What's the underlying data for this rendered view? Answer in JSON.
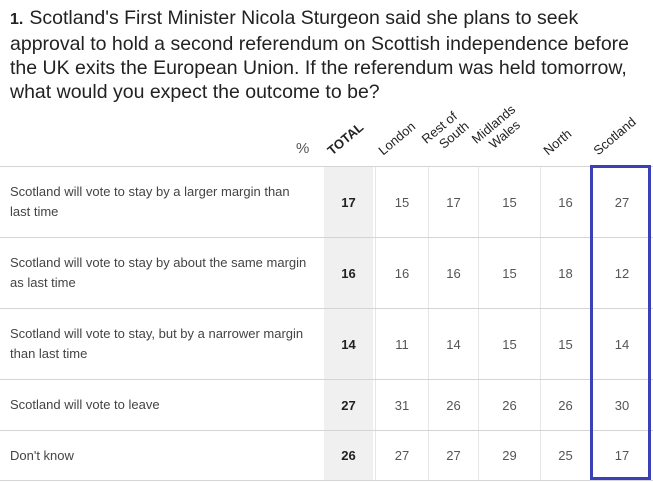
{
  "question": {
    "number": "1.",
    "text": "Scotland's First Minister Nicola Sturgeon said she plans to seek approval to hold a second referendum on Scottish independence before the UK exits the European Union. If the referendum was held tomorrow, what would you expect the outcome to be?"
  },
  "chart_data": {
    "type": "table",
    "unit_label": "%",
    "columns": [
      {
        "label": "TOTAL",
        "lines": [
          "TOTAL"
        ]
      },
      {
        "label": "London",
        "lines": [
          "London"
        ]
      },
      {
        "label": "Rest of South",
        "lines": [
          "Rest of",
          "South"
        ]
      },
      {
        "label": "Midlands Wales",
        "lines": [
          "Midlands",
          "Wales"
        ]
      },
      {
        "label": "North",
        "lines": [
          "North"
        ]
      },
      {
        "label": "Scotland",
        "lines": [
          "Scotland"
        ]
      }
    ],
    "rows": [
      {
        "label": "Scotland will vote to stay by a larger margin than last time",
        "values": [
          17,
          15,
          17,
          15,
          16,
          27
        ]
      },
      {
        "label": "Scotland will vote to stay by about the same margin as last time",
        "values": [
          16,
          16,
          16,
          15,
          18,
          12
        ]
      },
      {
        "label": "Scotland will vote to stay, but by a narrower margin than last time",
        "values": [
          14,
          11,
          14,
          15,
          15,
          14
        ]
      },
      {
        "label": "Scotland will vote to leave",
        "values": [
          27,
          31,
          26,
          26,
          26,
          30
        ]
      },
      {
        "label": "Don't know",
        "values": [
          26,
          27,
          27,
          29,
          25,
          17
        ]
      }
    ],
    "highlighted_column": "Scotland",
    "colors": {
      "highlight": "#3b3fb8",
      "total_bg": "#f0f0f0"
    }
  }
}
